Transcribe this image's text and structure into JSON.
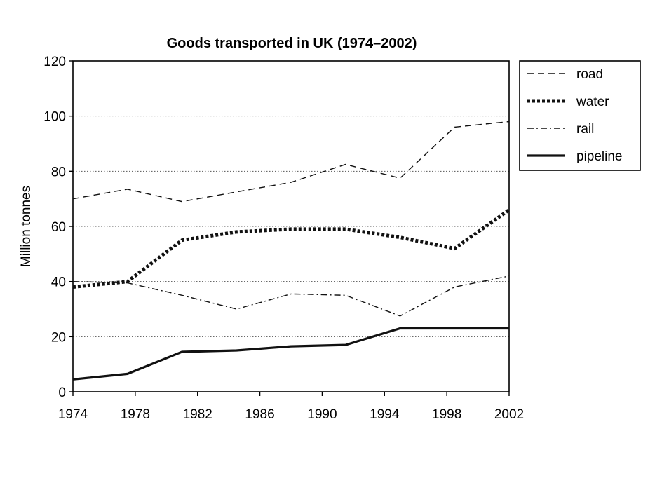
{
  "chart_data": {
    "type": "line",
    "title": "Goods transported in UK (1974–2002)",
    "xlabel": "",
    "ylabel": "Million tonnes",
    "x_ticks": [
      "1974",
      "1978",
      "1982",
      "1986",
      "1990",
      "1994",
      "1998",
      "2002"
    ],
    "y_ticks": [
      "0",
      "20",
      "40",
      "60",
      "80",
      "100",
      "120"
    ],
    "xlim": [
      1974,
      2002
    ],
    "ylim": [
      0,
      120
    ],
    "grid": "horizontal-dotted",
    "legend_position": "right",
    "series": [
      {
        "name": "road",
        "style": "dashed",
        "x": [
          1974,
          1977.5,
          1981,
          1984.5,
          1988,
          1991.5,
          1995,
          1998.5,
          2002
        ],
        "y": [
          70,
          73.5,
          69,
          72.5,
          76,
          82.5,
          77.5,
          96,
          98
        ]
      },
      {
        "name": "water",
        "style": "dotted",
        "x": [
          1974,
          1977.5,
          1981,
          1984.5,
          1988,
          1991.5,
          1995,
          1998.5,
          2002
        ],
        "y": [
          38,
          40,
          55,
          58,
          59,
          59,
          56,
          52,
          66
        ]
      },
      {
        "name": "rail",
        "style": "dash-dot",
        "x": [
          1974,
          1977.5,
          1981,
          1984.5,
          1988,
          1991.5,
          1995,
          1998.5,
          2002
        ],
        "y": [
          40,
          39.5,
          35,
          30,
          35.5,
          35,
          27.5,
          38,
          42
        ]
      },
      {
        "name": "pipeline",
        "style": "solid",
        "x": [
          1974,
          1977.5,
          1981,
          1984.5,
          1988,
          1991.5,
          1995,
          1998.5,
          2002
        ],
        "y": [
          4.5,
          6.5,
          14.5,
          15,
          16.5,
          17,
          23,
          23,
          23
        ]
      }
    ]
  }
}
